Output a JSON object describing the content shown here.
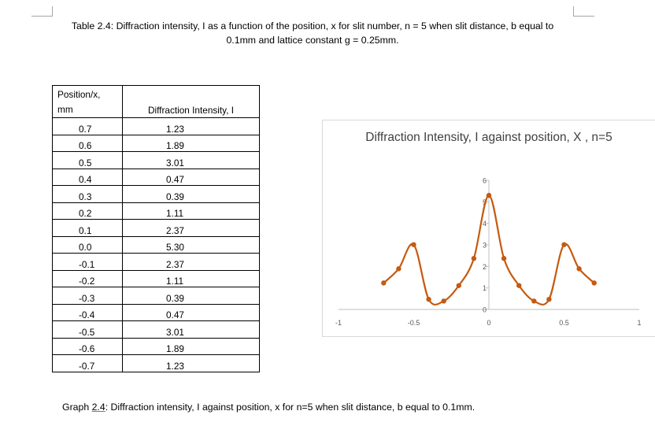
{
  "table_caption": "Table 2.4: Diffraction intensity, I as a function of the position, x for slit number, n = 5 when slit distance, b equal to 0.1mm and lattice constant g = 0.25mm.",
  "table": {
    "headers": [
      "Position/x, mm",
      "Diffraction Intensity, I"
    ],
    "rows": [
      [
        "0.7",
        "1.23"
      ],
      [
        "0.6",
        "1.89"
      ],
      [
        "0.5",
        "3.01"
      ],
      [
        "0.4",
        "0.47"
      ],
      [
        "0.3",
        "0.39"
      ],
      [
        "0.2",
        "1.11"
      ],
      [
        "0.1",
        "2.37"
      ],
      [
        "0.0",
        "5.30"
      ],
      [
        "-0.1",
        "2.37"
      ],
      [
        "-0.2",
        "1.11"
      ],
      [
        "-0.3",
        "0.39"
      ],
      [
        "-0.4",
        "0.47"
      ],
      [
        "-0.5",
        "3.01"
      ],
      [
        "-0.6",
        "1.89"
      ],
      [
        "-0.7",
        "1.23"
      ]
    ]
  },
  "chart_data": {
    "type": "scatter",
    "title": "Diffraction Intensity, I against position, X , n=5",
    "xlabel": "",
    "ylabel": "",
    "xlim": [
      -1,
      1
    ],
    "ylim": [
      0,
      6
    ],
    "x_ticks": [
      "-1",
      "-0.5",
      "0",
      "0.5",
      "1"
    ],
    "y_ticks": [
      "0",
      "1",
      "2",
      "3",
      "4",
      "5",
      "6"
    ],
    "smooth_lines": true,
    "series": [
      {
        "x": [
          -0.7,
          -0.6,
          -0.5,
          -0.4,
          -0.3,
          -0.2,
          -0.1,
          0.0,
          0.1,
          0.2,
          0.3,
          0.4,
          0.5,
          0.6,
          0.7
        ],
        "y": [
          1.23,
          1.89,
          3.01,
          0.47,
          0.39,
          1.11,
          2.37,
          5.3,
          2.37,
          1.11,
          0.39,
          0.47,
          3.01,
          1.89,
          1.23
        ],
        "color": "#c55a11"
      }
    ]
  },
  "graph_caption": {
    "prefix": "Graph ",
    "number": "2.4",
    "suffix": ": Diffraction intensity, I against position, x for n=5 when slit distance, b equal to 0.1mm."
  }
}
